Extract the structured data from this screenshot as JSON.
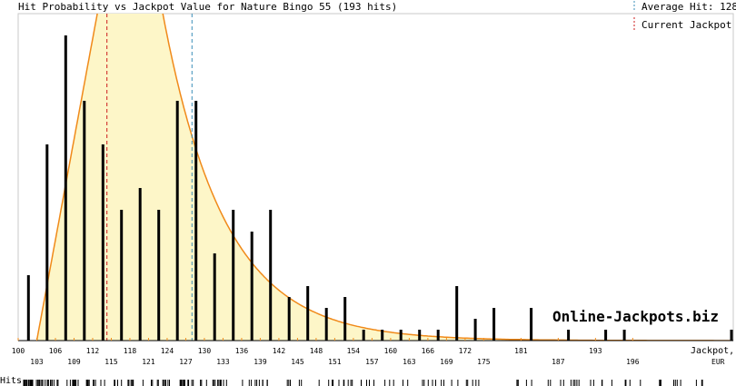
{
  "chart_data": {
    "type": "bar",
    "title": "Hit Probability vs Jackpot Value for Nature Bingo 55 (193 hits)",
    "legend": {
      "average_label": "Average Hit: 128",
      "current_label": "Current Jackpot",
      "placement": "top-right"
    },
    "xlabel": "Jackpot,",
    "xunit": "EUR",
    "hits_label": "Hits",
    "watermark": "Online-Jackpots.biz",
    "xlim": [
      100,
      177.5
    ],
    "average_hit": 128,
    "current_jackpot": 114.3,
    "ticks_upper": [
      "100",
      "106",
      "112",
      "118",
      "124",
      "130",
      "136",
      "142",
      "148",
      "154",
      "160",
      "166",
      "172",
      "181",
      "193"
    ],
    "ticks_lower": [
      "103",
      "109",
      "115",
      "121",
      "127",
      "133",
      "139",
      "145",
      "151",
      "157",
      "163",
      "169",
      "175",
      "187",
      "196"
    ],
    "tick_upper_pos": [
      100,
      106,
      112,
      118,
      124,
      130,
      136,
      142,
      148,
      154,
      160,
      166,
      172,
      181,
      193
    ],
    "tick_lower_pos": [
      103,
      109,
      115,
      121,
      127,
      133,
      139,
      145,
      151,
      157,
      163,
      169,
      175,
      187,
      196
    ],
    "tick_index_upper": [
      0,
      2,
      4,
      6,
      8,
      10,
      12,
      14,
      16,
      18,
      20,
      22,
      24,
      27,
      31
    ],
    "tick_index_lower": [
      1,
      3,
      5,
      7,
      9,
      11,
      13,
      15,
      17,
      19,
      21,
      23,
      25,
      29,
      33
    ],
    "bars": [
      {
        "slot": 0.55,
        "value": 3
      },
      {
        "slot": 1.55,
        "value": 9
      },
      {
        "slot": 2.55,
        "value": 14
      },
      {
        "slot": 3.55,
        "value": 11
      },
      {
        "slot": 4.55,
        "value": 9
      },
      {
        "slot": 5.55,
        "value": 6
      },
      {
        "slot": 6.55,
        "value": 7
      },
      {
        "slot": 7.55,
        "value": 6
      },
      {
        "slot": 8.55,
        "value": 11
      },
      {
        "slot": 9.55,
        "value": 11
      },
      {
        "slot": 10.55,
        "value": 4
      },
      {
        "slot": 11.55,
        "value": 6
      },
      {
        "slot": 12.55,
        "value": 5
      },
      {
        "slot": 13.55,
        "value": 6
      },
      {
        "slot": 14.55,
        "value": 2
      },
      {
        "slot": 15.55,
        "value": 2.5
      },
      {
        "slot": 16.55,
        "value": 1.5
      },
      {
        "slot": 17.55,
        "value": 2
      },
      {
        "slot": 18.55,
        "value": 0.5
      },
      {
        "slot": 19.55,
        "value": 0.5
      },
      {
        "slot": 20.55,
        "value": 0.5
      },
      {
        "slot": 21.55,
        "value": 0.5
      },
      {
        "slot": 22.55,
        "value": 0.5
      },
      {
        "slot": 23.55,
        "value": 2.5
      },
      {
        "slot": 24.55,
        "value": 1
      },
      {
        "slot": 25.55,
        "value": 1.5
      },
      {
        "slot": 27.55,
        "value": 1.5
      },
      {
        "slot": 29.55,
        "value": 0.5
      },
      {
        "slot": 31.55,
        "value": 0.5
      },
      {
        "slot": 32.55,
        "value": 0.5
      },
      {
        "slot": 38.3,
        "value": 0.5
      }
    ],
    "ylim": [
      0,
      15
    ],
    "curve": {
      "start_slot": 1,
      "peak_slot": 6.2,
      "decay": 0.3
    },
    "hit_ticks_density": "193 hits across jackpot range",
    "colors": {
      "fill": "#fdf6c8",
      "curve": "#f08a1a",
      "average_line": "#3a8db8",
      "current_line": "#cc1b1b",
      "bars": "#000000",
      "watermark": "#f5c79a",
      "axis_tick": "#f08a1a"
    }
  }
}
